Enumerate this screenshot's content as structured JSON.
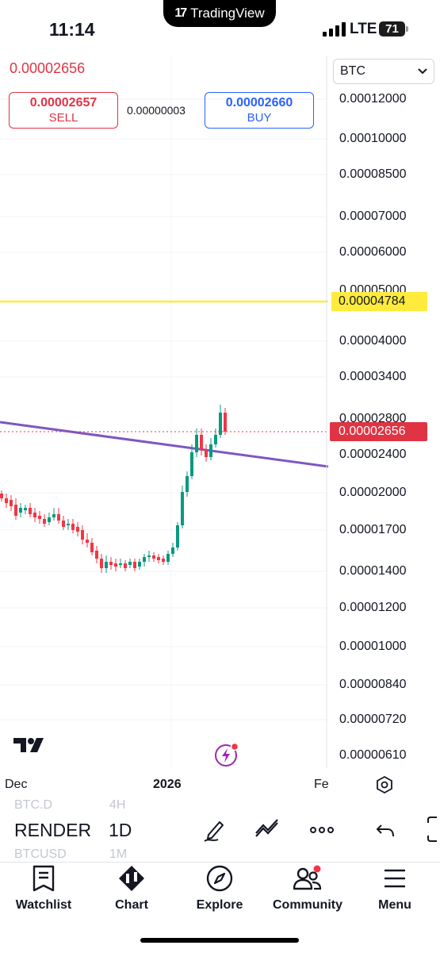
{
  "status_bar": {
    "time": "11:14",
    "app_name": "TradingView",
    "network": "LTE",
    "battery": "71"
  },
  "chart": {
    "last_price": "0.00002656",
    "sell": {
      "price": "0.00002657",
      "label": "SELL"
    },
    "spread": "0.00000003",
    "buy": {
      "price": "0.00002660",
      "label": "BUY"
    },
    "currency_select": "BTC",
    "price_axis": [
      "0.00012000",
      "0.00010000",
      "0.00008500",
      "0.00007000",
      "0.00006000",
      "0.00005000",
      "0.00004000",
      "0.00003400",
      "0.00002800",
      "0.00002400",
      "0.00002000",
      "0.00001700",
      "0.00001400",
      "0.00001200",
      "0.00001000",
      "0.00000840",
      "0.00000720",
      "0.00000610"
    ],
    "horizontal_line_label": "0.00004784",
    "current_price_label": "0.00002656",
    "time_axis": [
      "Dec",
      "2026",
      "Fe"
    ],
    "colors": {
      "up": "#089981",
      "down": "#f23645",
      "hline": "#ffeb3b",
      "trendline": "#7e57c2"
    }
  },
  "toolbar": {
    "symbol_prev": "BTC.D",
    "symbol": "RENDER",
    "symbol_next": "BTCUSD",
    "interval_prev": "4H",
    "interval": "1D",
    "interval_next": "1M",
    "tools": [
      "pencil-icon",
      "drawings-icon",
      "more-icon",
      "undo-icon"
    ]
  },
  "nav": [
    {
      "label": "Watchlist",
      "icon": "watchlist-icon"
    },
    {
      "label": "Chart",
      "icon": "chart-icon"
    },
    {
      "label": "Explore",
      "icon": "compass-icon"
    },
    {
      "label": "Community",
      "icon": "community-icon"
    },
    {
      "label": "Menu",
      "icon": "menu-icon"
    }
  ]
}
